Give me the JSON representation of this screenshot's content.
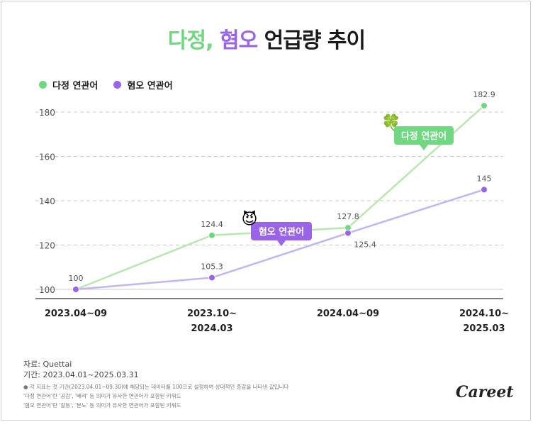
{
  "title": {
    "part1": "다정,",
    "part2": "혐오",
    "part3": "언급량 추이"
  },
  "legend": {
    "green": "다정 연관어",
    "purple": "혐오 연관어"
  },
  "source": {
    "line1": "자료: Quettai",
    "line2": "기간: 2023.04.01~2025.03.31"
  },
  "footnotes": [
    "● 각 지표는 첫 기간(2023.04.01~09.30)에 해당되는 데이터를 100으로 설정하여 상대적인 증감을 나타낸 값입니다",
    "'다정 연관어'란 '공감', '배려' 등 의미가 유사한 연관어가 포함된 키워드",
    "'혐오 연관어'란 '갈등', '분노' 등 의미가 유사한 연관어가 포함된 키워드"
  ],
  "logo": "Careet",
  "colors": {
    "green": "#6fd880",
    "green_line": "#b8e8ad",
    "purple": "#9a64e8",
    "purple_line": "#c4b4f4",
    "grid": "#c8c8c8"
  },
  "chart_data": {
    "type": "line",
    "title": "다정, 혐오 언급량 추이",
    "categories": [
      [
        "2023.04~09"
      ],
      [
        "2023.10~",
        "2024.03"
      ],
      [
        "2024.04~09"
      ],
      [
        "2024.10~",
        "2025.03"
      ]
    ],
    "series": [
      {
        "name": "다정 연관어",
        "color": "#6fd880",
        "values": [
          100,
          124.4,
          127.8,
          182.9
        ],
        "labels": [
          "100",
          "124.4",
          "127.8",
          "182.9"
        ]
      },
      {
        "name": "혐오 연관어",
        "color": "#9a64e8",
        "values": [
          100,
          105.3,
          125.4,
          145
        ],
        "labels": [
          "",
          "105.3",
          "125.4",
          "145"
        ]
      }
    ],
    "ylim": [
      100,
      180
    ],
    "yticks": [
      100,
      120,
      140,
      160,
      180
    ],
    "grid": true,
    "legend_position": "top-left",
    "annotations": [
      {
        "text": "다정 연관어",
        "emoji": "🍀",
        "series": 0
      },
      {
        "text": "혐오 연관어",
        "emoji": "😈",
        "series": 1
      }
    ]
  }
}
